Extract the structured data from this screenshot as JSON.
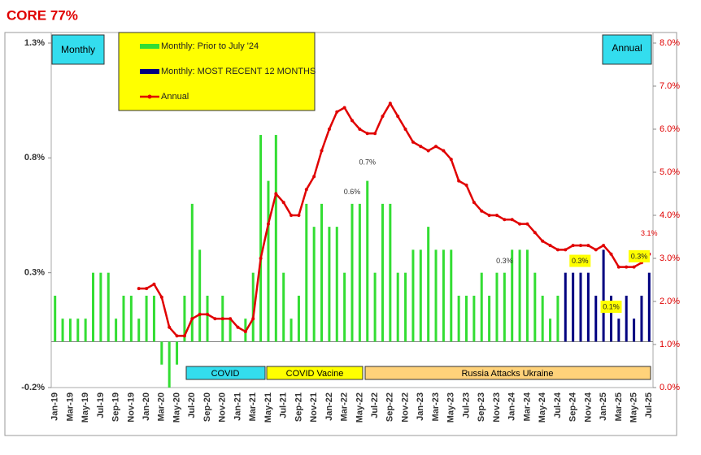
{
  "chart_data": {
    "type": "bar",
    "title": "CORE 77%",
    "categories": [
      "Jan-19",
      null,
      "Mar-19",
      null,
      "May-19",
      null,
      "Jul-19",
      null,
      "Sep-19",
      null,
      "Nov-19",
      null,
      "Jan-20",
      null,
      "Mar-20",
      null,
      "May-20",
      null,
      "Jul-20",
      null,
      "Sep-20",
      null,
      "Nov-20",
      null,
      "Jan-21",
      null,
      "Mar-21",
      null,
      "May-21",
      null,
      "Jul-21",
      null,
      "Sep-21",
      null,
      "Nov-21",
      null,
      "Jan-22",
      null,
      "Mar-22",
      null,
      "May-22",
      null,
      "Jul-22",
      null,
      "Sep-22",
      null,
      "Nov-22",
      null,
      "Jan-23",
      null,
      "Mar-23",
      null,
      "May-23",
      null,
      "Jul-23",
      null,
      "Sep-23",
      null,
      "Nov-23",
      null,
      "Jan-24",
      null,
      "Mar-24",
      null,
      "May-24",
      null,
      "Jul-24",
      null,
      "Sep-24",
      null,
      "Nov-24",
      null,
      "Jan-25",
      null,
      "Mar-25",
      null,
      "May-25",
      null,
      "Jul-25"
    ],
    "series": [
      {
        "name": "Monthly: Prior to July '24",
        "color": "#33dd33",
        "values": [
          0.2,
          0.1,
          0.1,
          0.1,
          0.1,
          0.3,
          0.3,
          0.3,
          0.1,
          0.2,
          0.2,
          0.1,
          0.2,
          0.2,
          -0.1,
          -0.2,
          -0.1,
          0.2,
          0.6,
          0.4,
          0.2,
          0.0,
          0.2,
          0.1,
          0.0,
          0.1,
          0.3,
          0.9,
          0.7,
          0.9,
          0.3,
          0.1,
          0.2,
          0.6,
          0.5,
          0.6,
          0.5,
          0.5,
          0.3,
          0.6,
          0.6,
          0.7,
          0.3,
          0.6,
          0.6,
          0.3,
          0.3,
          0.4,
          0.4,
          0.5,
          0.4,
          0.4,
          0.4,
          0.2,
          0.2,
          0.2,
          0.3,
          0.2,
          0.3,
          0.3,
          0.4,
          0.4,
          0.4,
          0.3,
          0.2,
          0.1,
          0.2,
          null,
          null,
          null,
          null,
          null,
          null,
          null,
          null,
          null,
          null,
          null,
          null
        ]
      },
      {
        "name": "Monthly: MOST RECENT 12 MONTHS",
        "color": "#000080",
        "values": [
          null,
          null,
          null,
          null,
          null,
          null,
          null,
          null,
          null,
          null,
          null,
          null,
          null,
          null,
          null,
          null,
          null,
          null,
          null,
          null,
          null,
          null,
          null,
          null,
          null,
          null,
          null,
          null,
          null,
          null,
          null,
          null,
          null,
          null,
          null,
          null,
          null,
          null,
          null,
          null,
          null,
          null,
          null,
          null,
          null,
          null,
          null,
          null,
          null,
          null,
          null,
          null,
          null,
          null,
          null,
          null,
          null,
          null,
          null,
          null,
          null,
          null,
          null,
          null,
          null,
          null,
          null,
          0.3,
          0.3,
          0.3,
          0.3,
          0.2,
          0.4,
          0.2,
          0.1,
          0.2,
          0.1,
          0.2,
          0.3
        ]
      },
      {
        "name": "Annual",
        "color": "#e00000",
        "axis": "y2",
        "values": [
          null,
          null,
          null,
          null,
          null,
          null,
          null,
          null,
          null,
          null,
          null,
          2.3,
          2.3,
          2.4,
          2.1,
          1.4,
          1.2,
          1.2,
          1.6,
          1.7,
          1.7,
          1.6,
          1.6,
          1.6,
          1.4,
          1.3,
          1.6,
          3.0,
          3.8,
          4.5,
          4.3,
          4.0,
          4.0,
          4.6,
          4.9,
          5.5,
          6.0,
          6.4,
          6.5,
          6.2,
          6.0,
          5.9,
          5.9,
          6.3,
          6.6,
          6.3,
          6.0,
          5.7,
          5.6,
          5.5,
          5.6,
          5.5,
          5.3,
          4.8,
          4.7,
          4.3,
          4.1,
          4.0,
          4.0,
          3.9,
          3.9,
          3.8,
          3.8,
          3.6,
          3.4,
          3.3,
          3.2,
          3.2,
          3.3,
          3.3,
          3.3,
          3.2,
          3.3,
          3.1,
          2.8,
          2.8,
          2.8,
          2.9,
          3.1
        ]
      }
    ],
    "ylim": [
      -0.2,
      1.3
    ],
    "yticks": [
      {
        "value": -0.2,
        "label": "-0.2%"
      },
      {
        "value": 0.3,
        "label": "0.3%"
      },
      {
        "value": 0.8,
        "label": "0.8%"
      },
      {
        "value": 1.3,
        "label": "1.3%"
      }
    ],
    "y2lim": [
      0,
      8
    ],
    "y2ticks": [
      {
        "value": 0,
        "label": "0.0%"
      },
      {
        "value": 1,
        "label": "1.0%"
      },
      {
        "value": 2,
        "label": "2.0%"
      },
      {
        "value": 3,
        "label": "3.0%"
      },
      {
        "value": 4,
        "label": "4.0%"
      },
      {
        "value": 5,
        "label": "5.0%"
      },
      {
        "value": 6,
        "label": "6.0%"
      },
      {
        "value": 7,
        "label": "7.0%"
      },
      {
        "value": 8,
        "label": "8.0%"
      }
    ],
    "left_box": "Monthly",
    "right_box": "Annual",
    "periods": [
      "COVID",
      "COVID Vacine",
      "Russia Attacks Ukraine"
    ],
    "annotations": [
      "0.7%",
      "0.6%",
      "0.3%",
      "0.3%",
      "0.1%",
      "0.3%",
      "3.1%"
    ]
  }
}
